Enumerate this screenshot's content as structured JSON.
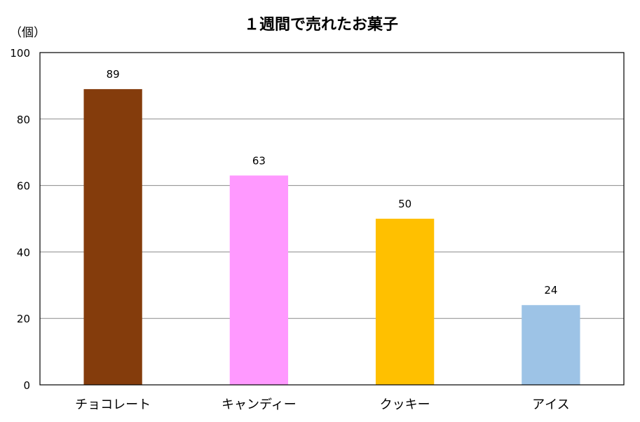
{
  "chart_data": {
    "type": "bar",
    "title": "１週間で売れたお菓子",
    "ylabel": "（個）",
    "xlabel": "",
    "ylim": [
      0,
      100
    ],
    "yticks": [
      0,
      20,
      40,
      60,
      80,
      100
    ],
    "grid": true,
    "categories": [
      "チョコレート",
      "キャンディー",
      "クッキー",
      "アイス"
    ],
    "values": [
      89,
      63,
      50,
      24
    ],
    "colors": [
      "#843C0C",
      "#FF99FF",
      "#FFC000",
      "#9DC3E6"
    ],
    "data_labels": [
      "89",
      "63",
      "50",
      "24"
    ]
  }
}
